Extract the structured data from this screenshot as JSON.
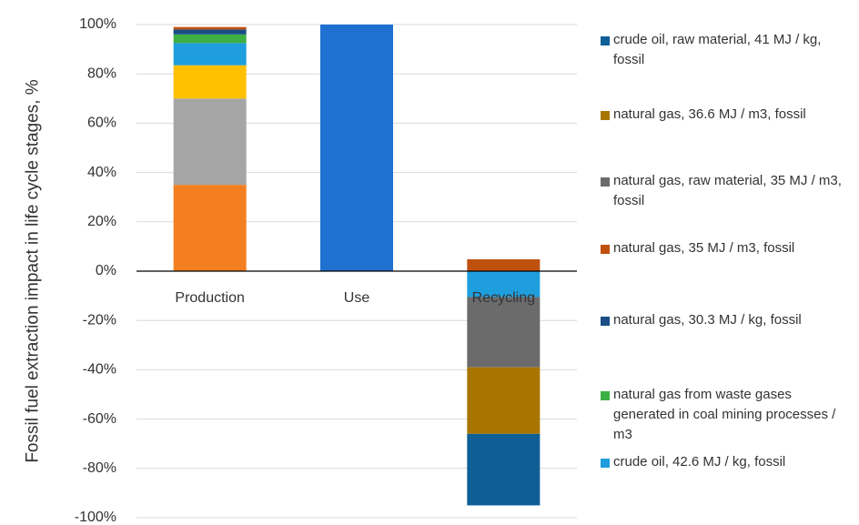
{
  "chart_data": {
    "type": "bar",
    "stacked": true,
    "y_label": "Fossil fuel extraction impact in life cycle stages, %",
    "categories": [
      "Production",
      "Use",
      "Recycling"
    ],
    "ylim": [
      -100,
      100
    ],
    "yticks": [
      {
        "value": -100,
        "label": "-100%"
      },
      {
        "value": -80,
        "label": "-80%"
      },
      {
        "value": -60,
        "label": "-60%"
      },
      {
        "value": -40,
        "label": "-40%"
      },
      {
        "value": -20,
        "label": "-20%"
      },
      {
        "value": 0,
        "label": "0%"
      },
      {
        "value": 20,
        "label": "20%"
      },
      {
        "value": 40,
        "label": "40%"
      },
      {
        "value": 60,
        "label": "60%"
      },
      {
        "value": 80,
        "label": "80%"
      },
      {
        "value": 100,
        "label": "100%"
      }
    ],
    "grid": true,
    "series": [
      {
        "color": "#f47f20",
        "values": [
          35,
          null,
          null
        ]
      },
      {
        "color": "#a5a5a5",
        "values": [
          35,
          null,
          null
        ]
      },
      {
        "color": "#ffc000",
        "values": [
          13.5,
          null,
          null
        ]
      },
      {
        "name": "crude oil, 42.6 MJ / kg, fossil",
        "color": "#1f9ede",
        "values": [
          9,
          null,
          -10.5
        ]
      },
      {
        "name": "natural gas from waste gases generated in coal mining processes / m3",
        "color": "#3cb043",
        "values": [
          3.5,
          null,
          null
        ]
      },
      {
        "name": "natural gas, 30.3 MJ / kg, fossil",
        "color": "#1a4e85",
        "values": [
          2,
          null,
          null
        ]
      },
      {
        "name": "natural gas, 35 MJ / m3, fossil",
        "color": "#c0500f",
        "values": [
          1,
          null,
          4.8
        ]
      },
      {
        "name": "natural gas, raw material, 35 MJ / m3, fossil",
        "color": "#6b6b6b",
        "values": [
          null,
          null,
          -28.5
        ]
      },
      {
        "name": "natural gas, 36.6 MJ / m3, fossil",
        "color": "#a87600",
        "values": [
          null,
          null,
          -27
        ]
      },
      {
        "name": "crude oil, raw material, 41 MJ / kg, fossil",
        "color": "#0f5e96",
        "values": [
          null,
          null,
          -29
        ]
      },
      {
        "color": "#1f70d0",
        "values": [
          null,
          100,
          null
        ]
      }
    ]
  }
}
